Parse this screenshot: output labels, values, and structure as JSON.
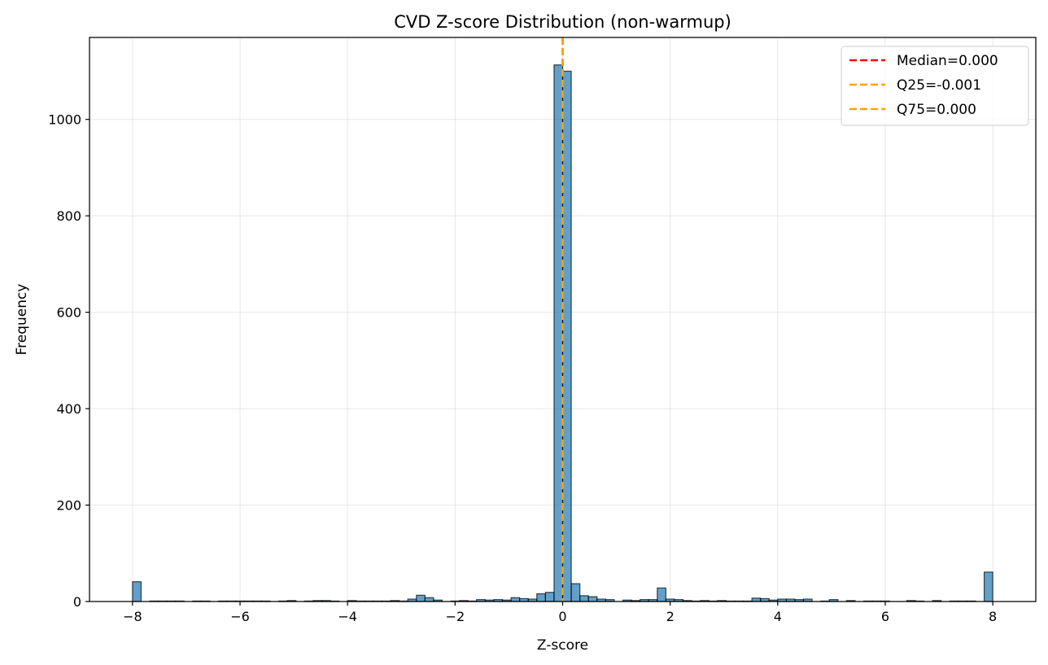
{
  "chart_data": {
    "type": "bar",
    "title": "CVD Z-score Distribution (non-warmup)",
    "xlabel": "Z-score",
    "ylabel": "Frequency",
    "xlim": [
      -8.8,
      8.8
    ],
    "ylim": [
      0,
      1170
    ],
    "xticks": [
      -8,
      -6,
      -4,
      -2,
      0,
      2,
      4,
      6,
      8
    ],
    "xtick_labels": [
      "−8",
      "−6",
      "−4",
      "−2",
      "0",
      "2",
      "4",
      "6",
      "8"
    ],
    "yticks": [
      0,
      200,
      400,
      600,
      800,
      1000
    ],
    "ytick_labels": [
      "0",
      "200",
      "400",
      "600",
      "800",
      "1000"
    ],
    "grid": true,
    "legend_position": "top-right",
    "bin_width": 0.16,
    "bins": [
      {
        "x": -7.92,
        "count": 41
      },
      {
        "x": -7.6,
        "count": 1
      },
      {
        "x": -7.44,
        "count": 1
      },
      {
        "x": -7.28,
        "count": 1
      },
      {
        "x": -7.12,
        "count": 1
      },
      {
        "x": -6.8,
        "count": 1
      },
      {
        "x": -6.64,
        "count": 1
      },
      {
        "x": -6.32,
        "count": 1
      },
      {
        "x": -6.16,
        "count": 1
      },
      {
        "x": -6.0,
        "count": 1
      },
      {
        "x": -5.84,
        "count": 1
      },
      {
        "x": -5.68,
        "count": 1
      },
      {
        "x": -5.52,
        "count": 1
      },
      {
        "x": -5.2,
        "count": 1
      },
      {
        "x": -5.04,
        "count": 2
      },
      {
        "x": -4.72,
        "count": 1
      },
      {
        "x": -4.56,
        "count": 2
      },
      {
        "x": -4.4,
        "count": 2
      },
      {
        "x": -4.24,
        "count": 1
      },
      {
        "x": -3.92,
        "count": 2
      },
      {
        "x": -3.76,
        "count": 1
      },
      {
        "x": -3.6,
        "count": 1
      },
      {
        "x": -3.44,
        "count": 1
      },
      {
        "x": -3.28,
        "count": 1
      },
      {
        "x": -3.12,
        "count": 2
      },
      {
        "x": -2.96,
        "count": 1
      },
      {
        "x": -2.8,
        "count": 5
      },
      {
        "x": -2.64,
        "count": 13
      },
      {
        "x": -2.48,
        "count": 8
      },
      {
        "x": -2.32,
        "count": 3
      },
      {
        "x": -2.0,
        "count": 1
      },
      {
        "x": -1.84,
        "count": 2
      },
      {
        "x": -1.68,
        "count": 1
      },
      {
        "x": -1.52,
        "count": 4
      },
      {
        "x": -1.36,
        "count": 3
      },
      {
        "x": -1.2,
        "count": 4
      },
      {
        "x": -1.04,
        "count": 3
      },
      {
        "x": -0.88,
        "count": 8
      },
      {
        "x": -0.72,
        "count": 6
      },
      {
        "x": -0.56,
        "count": 5
      },
      {
        "x": -0.4,
        "count": 16
      },
      {
        "x": -0.24,
        "count": 19
      },
      {
        "x": -0.08,
        "count": 1113
      },
      {
        "x": 0.08,
        "count": 1100
      },
      {
        "x": 0.24,
        "count": 37
      },
      {
        "x": 0.4,
        "count": 12
      },
      {
        "x": 0.56,
        "count": 10
      },
      {
        "x": 0.72,
        "count": 5
      },
      {
        "x": 0.88,
        "count": 4
      },
      {
        "x": 1.2,
        "count": 3
      },
      {
        "x": 1.36,
        "count": 2
      },
      {
        "x": 1.52,
        "count": 4
      },
      {
        "x": 1.68,
        "count": 4
      },
      {
        "x": 1.84,
        "count": 28
      },
      {
        "x": 2.0,
        "count": 5
      },
      {
        "x": 2.16,
        "count": 4
      },
      {
        "x": 2.32,
        "count": 2
      },
      {
        "x": 2.48,
        "count": 1
      },
      {
        "x": 2.64,
        "count": 2
      },
      {
        "x": 2.8,
        "count": 1
      },
      {
        "x": 2.96,
        "count": 2
      },
      {
        "x": 3.12,
        "count": 1
      },
      {
        "x": 3.28,
        "count": 1
      },
      {
        "x": 3.44,
        "count": 1
      },
      {
        "x": 3.6,
        "count": 7
      },
      {
        "x": 3.76,
        "count": 6
      },
      {
        "x": 3.92,
        "count": 3
      },
      {
        "x": 4.08,
        "count": 5
      },
      {
        "x": 4.24,
        "count": 5
      },
      {
        "x": 4.4,
        "count": 4
      },
      {
        "x": 4.56,
        "count": 5
      },
      {
        "x": 4.88,
        "count": 1
      },
      {
        "x": 5.04,
        "count": 4
      },
      {
        "x": 5.36,
        "count": 2
      },
      {
        "x": 5.68,
        "count": 1
      },
      {
        "x": 5.84,
        "count": 1
      },
      {
        "x": 6.0,
        "count": 1
      },
      {
        "x": 6.48,
        "count": 2
      },
      {
        "x": 6.64,
        "count": 1
      },
      {
        "x": 6.96,
        "count": 2
      },
      {
        "x": 7.28,
        "count": 1
      },
      {
        "x": 7.44,
        "count": 1
      },
      {
        "x": 7.6,
        "count": 1
      },
      {
        "x": 7.92,
        "count": 61
      }
    ],
    "bar_color": "#1f77b4",
    "vlines": [
      {
        "label": "Median=0.000",
        "x": 0.0,
        "color": "#ff0000"
      },
      {
        "label": "Q25=-0.001",
        "x": -0.001,
        "color": "#ffa500"
      },
      {
        "label": "Q75=0.000",
        "x": 0.0,
        "color": "#ffa500"
      }
    ]
  }
}
